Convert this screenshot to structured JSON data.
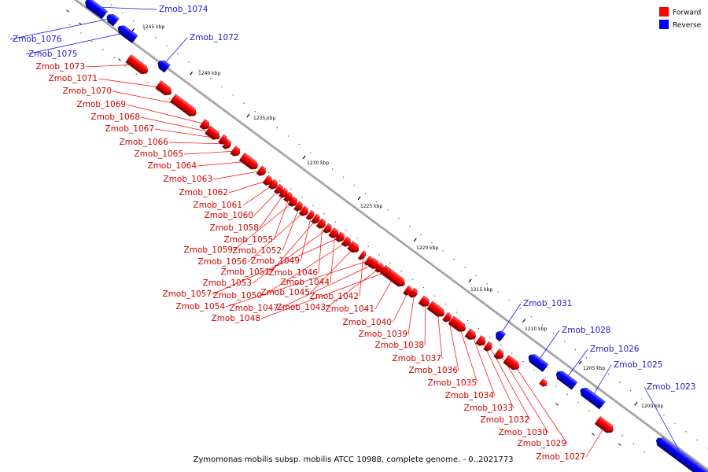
{
  "caption": "Zymomonas mobilis subsp. mobilis ATCC 10988, complete genome. - 0..2021773",
  "legend": [
    {
      "label": "Forward",
      "color": "#ff0000"
    },
    {
      "label": "Reverse",
      "color": "#0000ff"
    }
  ],
  "colors": {
    "forward": "#ff0000",
    "reverse": "#0000ff",
    "forward_label": "#cc0000",
    "reverse_label": "#1a1acc",
    "backbone": "#999999"
  },
  "ticks": [
    {
      "label": "1245 kbp"
    },
    {
      "label": "1240 kbp"
    },
    {
      "label": "1235 kbp"
    },
    {
      "label": "1230 kbp"
    },
    {
      "label": "1225 kbp"
    },
    {
      "label": "1220 kbp"
    },
    {
      "label": "1215 kbp"
    },
    {
      "label": "1210 kbp"
    },
    {
      "label": "1205 kbp"
    },
    {
      "label": "1200 kbp"
    }
  ],
  "genes": [
    {
      "name": "Zmob_1074",
      "strand": "reverse"
    },
    {
      "name": "Zmob_1076",
      "strand": "reverse"
    },
    {
      "name": "Zmob_1072",
      "strand": "reverse"
    },
    {
      "name": "Zmob_1075",
      "strand": "reverse"
    },
    {
      "name": "Zmob_1073",
      "strand": "forward"
    },
    {
      "name": "Zmob_1071",
      "strand": "forward"
    },
    {
      "name": "Zmob_1070",
      "strand": "forward"
    },
    {
      "name": "Zmob_1069",
      "strand": "forward"
    },
    {
      "name": "Zmob_1068",
      "strand": "forward"
    },
    {
      "name": "Zmob_1067",
      "strand": "forward"
    },
    {
      "name": "Zmob_1066",
      "strand": "forward"
    },
    {
      "name": "Zmob_1065",
      "strand": "forward"
    },
    {
      "name": "Zmob_1064",
      "strand": "forward"
    },
    {
      "name": "Zmob_1063",
      "strand": "forward"
    },
    {
      "name": "Zmob_1062",
      "strand": "forward"
    },
    {
      "name": "Zmob_1061",
      "strand": "forward"
    },
    {
      "name": "Zmob_1060",
      "strand": "forward"
    },
    {
      "name": "Zmob_1058",
      "strand": "forward"
    },
    {
      "name": "Zmob_1055",
      "strand": "forward"
    },
    {
      "name": "Zmob_1059",
      "strand": "forward"
    },
    {
      "name": "Zmob_1052",
      "strand": "forward"
    },
    {
      "name": "Zmob_1056",
      "strand": "forward"
    },
    {
      "name": "Zmob_1049",
      "strand": "forward"
    },
    {
      "name": "Zmob_1051",
      "strand": "forward"
    },
    {
      "name": "Zmob_1046",
      "strand": "forward"
    },
    {
      "name": "Zmob_1053",
      "strand": "forward"
    },
    {
      "name": "Zmob_1044",
      "strand": "forward"
    },
    {
      "name": "Zmob_1057",
      "strand": "forward"
    },
    {
      "name": "Zmob_1050",
      "strand": "forward"
    },
    {
      "name": "Zmob_1045",
      "strand": "forward"
    },
    {
      "name": "Zmob_1042",
      "strand": "forward"
    },
    {
      "name": "Zmob_1054",
      "strand": "forward"
    },
    {
      "name": "Zmob_1047",
      "strand": "forward"
    },
    {
      "name": "Zmob_1043",
      "strand": "forward"
    },
    {
      "name": "Zmob_1041",
      "strand": "forward"
    },
    {
      "name": "Zmob_1048",
      "strand": "forward"
    },
    {
      "name": "Zmob_1040",
      "strand": "forward"
    },
    {
      "name": "Zmob_1039",
      "strand": "forward"
    },
    {
      "name": "Zmob_1038",
      "strand": "forward"
    },
    {
      "name": "Zmob_1037",
      "strand": "forward"
    },
    {
      "name": "Zmob_1036",
      "strand": "forward"
    },
    {
      "name": "Zmob_1035",
      "strand": "forward"
    },
    {
      "name": "Zmob_1034",
      "strand": "forward"
    },
    {
      "name": "Zmob_1033",
      "strand": "forward"
    },
    {
      "name": "Zmob_1032",
      "strand": "forward"
    },
    {
      "name": "Zmob_1030",
      "strand": "forward"
    },
    {
      "name": "Zmob_1029",
      "strand": "forward"
    },
    {
      "name": "Zmob_1027",
      "strand": "forward"
    },
    {
      "name": "Zmob_1031",
      "strand": "reverse"
    },
    {
      "name": "Zmob_1028",
      "strand": "reverse"
    },
    {
      "name": "Zmob_1026",
      "strand": "reverse"
    },
    {
      "name": "Zmob_1025",
      "strand": "reverse"
    },
    {
      "name": "Zmob_1023",
      "strand": "reverse"
    }
  ]
}
